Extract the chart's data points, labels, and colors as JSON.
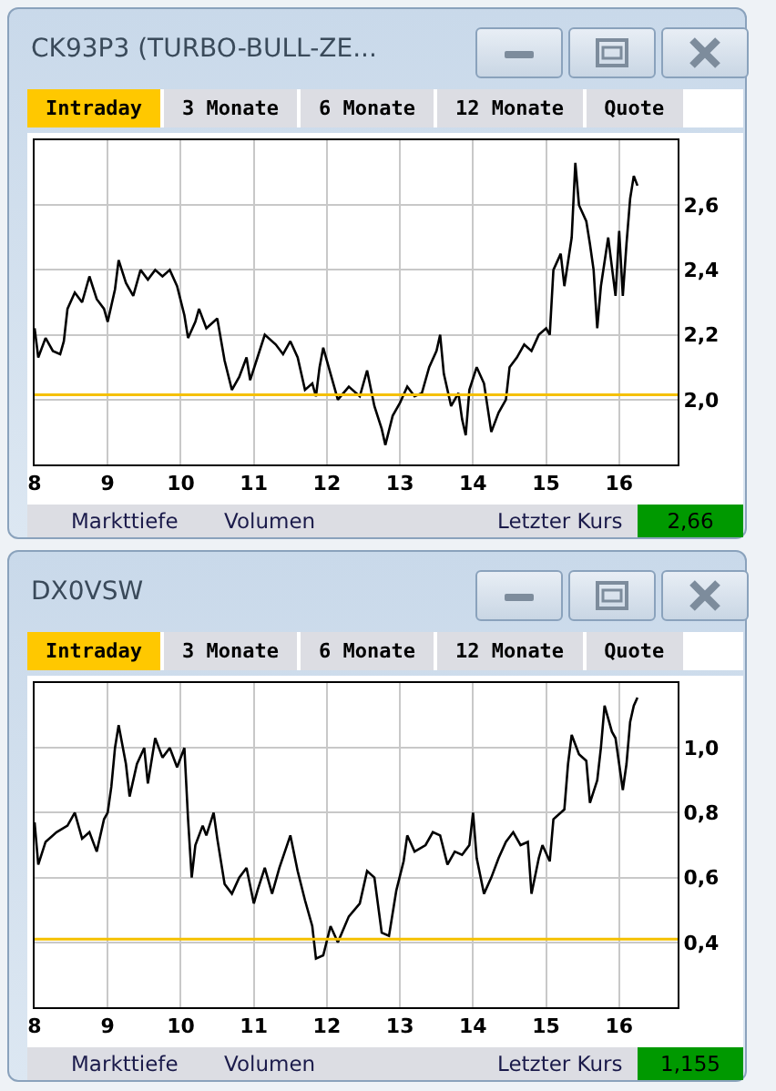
{
  "chart_data": [
    {
      "type": "line",
      "title": "CK93P3 (TURBO-BULL-ZE...",
      "annotations": [
        "Intraday",
        "3 Monate",
        "6 Monate",
        "12 Monate",
        "Quote",
        "Markttiefe",
        "Volumen",
        "Letzter Kurs",
        "2,66"
      ],
      "x": [
        8.0,
        8.05,
        8.15,
        8.25,
        8.35,
        8.4,
        8.45,
        8.55,
        8.65,
        8.7,
        8.75,
        8.85,
        8.95,
        9.0,
        9.1,
        9.15,
        9.25,
        9.35,
        9.45,
        9.55,
        9.65,
        9.75,
        9.85,
        9.95,
        10.05,
        10.1,
        10.2,
        10.25,
        10.35,
        10.5,
        10.6,
        10.7,
        10.8,
        10.9,
        10.95,
        11.05,
        11.15,
        11.3,
        11.4,
        11.5,
        11.6,
        11.7,
        11.8,
        11.85,
        11.9,
        11.95,
        12.05,
        12.15,
        12.3,
        12.45,
        12.55,
        12.65,
        12.75,
        12.8,
        12.9,
        13.0,
        13.1,
        13.2,
        13.3,
        13.4,
        13.5,
        13.55,
        13.6,
        13.7,
        13.8,
        13.85,
        13.9,
        13.95,
        14.05,
        14.15,
        14.25,
        14.35,
        14.45,
        14.5,
        14.6,
        14.7,
        14.8,
        14.9,
        15.0,
        15.05,
        15.1,
        15.2,
        15.25,
        15.35,
        15.4,
        15.45,
        15.55,
        15.6,
        15.65,
        15.7,
        15.75,
        15.85,
        15.95,
        16.0,
        16.05,
        16.1,
        16.15,
        16.2,
        16.25
      ],
      "series": [
        {
          "color": "#000000",
          "values": [
            2.22,
            2.13,
            2.19,
            2.15,
            2.14,
            2.18,
            2.28,
            2.33,
            2.3,
            2.34,
            2.38,
            2.31,
            2.28,
            2.24,
            2.34,
            2.43,
            2.36,
            2.32,
            2.4,
            2.37,
            2.4,
            2.38,
            2.4,
            2.35,
            2.26,
            2.19,
            2.24,
            2.28,
            2.22,
            2.25,
            2.12,
            2.03,
            2.07,
            2.13,
            2.06,
            2.13,
            2.2,
            2.17,
            2.14,
            2.18,
            2.13,
            2.03,
            2.05,
            2.01,
            2.1,
            2.16,
            2.08,
            2.0,
            2.04,
            2.01,
            2.09,
            1.98,
            1.91,
            1.86,
            1.95,
            1.99,
            2.04,
            2.01,
            2.02,
            2.1,
            2.15,
            2.2,
            2.08,
            1.98,
            2.02,
            1.94,
            1.89,
            2.03,
            2.1,
            2.05,
            1.9,
            1.96,
            2.0,
            2.1,
            2.13,
            2.17,
            2.15,
            2.2,
            2.22,
            2.2,
            2.4,
            2.45,
            2.35,
            2.5,
            2.73,
            2.6,
            2.55,
            2.48,
            2.4,
            2.22,
            2.35,
            2.5,
            2.32,
            2.52,
            2.32,
            2.48,
            2.62,
            2.69,
            2.66
          ]
        }
      ],
      "xlim": [
        8,
        16.8
      ],
      "xticks": [
        8,
        9,
        10,
        11,
        12,
        13,
        14,
        15,
        16
      ],
      "ylim": [
        1.8,
        2.8
      ],
      "yticks": [
        {
          "value": 2.0,
          "label": "2,0"
        },
        {
          "value": 2.2,
          "label": "2,2"
        },
        {
          "value": 2.4,
          "label": "2,4"
        },
        {
          "value": 2.6,
          "label": "2,6"
        }
      ],
      "ref_lines": [
        {
          "axis": "y",
          "value": 2.015,
          "color": "#f5c000"
        }
      ],
      "grid": true
    },
    {
      "type": "line",
      "title": "DX0VSW",
      "annotations": [
        "Intraday",
        "3 Monate",
        "6 Monate",
        "12 Monate",
        "Quote",
        "Markttiefe",
        "Volumen",
        "Letzter Kurs",
        "1,155"
      ],
      "x": [
        8.0,
        8.05,
        8.15,
        8.3,
        8.45,
        8.55,
        8.65,
        8.75,
        8.85,
        8.95,
        9.0,
        9.05,
        9.1,
        9.15,
        9.25,
        9.3,
        9.4,
        9.5,
        9.55,
        9.65,
        9.75,
        9.85,
        9.95,
        10.05,
        10.1,
        10.15,
        10.2,
        10.3,
        10.35,
        10.45,
        10.5,
        10.6,
        10.7,
        10.8,
        10.9,
        11.0,
        11.05,
        11.15,
        11.25,
        11.35,
        11.5,
        11.6,
        11.7,
        11.8,
        11.85,
        11.95,
        12.05,
        12.15,
        12.3,
        12.45,
        12.55,
        12.65,
        12.75,
        12.85,
        12.95,
        13.05,
        13.1,
        13.2,
        13.35,
        13.45,
        13.55,
        13.65,
        13.75,
        13.85,
        13.95,
        14.0,
        14.05,
        14.15,
        14.25,
        14.35,
        14.45,
        14.55,
        14.65,
        14.75,
        14.8,
        14.9,
        14.95,
        15.05,
        15.1,
        15.25,
        15.3,
        15.35,
        15.45,
        15.55,
        15.6,
        15.7,
        15.75,
        15.8,
        15.9,
        15.95,
        16.05,
        16.1,
        16.15,
        16.2,
        16.25
      ],
      "series": [
        {
          "color": "#000000",
          "values": [
            0.77,
            0.64,
            0.71,
            0.74,
            0.76,
            0.8,
            0.72,
            0.74,
            0.68,
            0.78,
            0.8,
            0.88,
            1.0,
            1.07,
            0.95,
            0.85,
            0.95,
            1.0,
            0.89,
            1.03,
            0.97,
            1.0,
            0.94,
            1.0,
            0.78,
            0.6,
            0.7,
            0.76,
            0.73,
            0.8,
            0.72,
            0.58,
            0.55,
            0.6,
            0.63,
            0.52,
            0.56,
            0.63,
            0.55,
            0.63,
            0.73,
            0.62,
            0.53,
            0.45,
            0.35,
            0.36,
            0.45,
            0.4,
            0.48,
            0.52,
            0.62,
            0.6,
            0.43,
            0.42,
            0.56,
            0.65,
            0.73,
            0.68,
            0.7,
            0.74,
            0.73,
            0.64,
            0.68,
            0.67,
            0.7,
            0.8,
            0.66,
            0.55,
            0.6,
            0.66,
            0.71,
            0.74,
            0.7,
            0.71,
            0.55,
            0.66,
            0.7,
            0.65,
            0.78,
            0.81,
            0.95,
            1.04,
            0.98,
            0.96,
            0.83,
            0.9,
            1.0,
            1.13,
            1.05,
            1.03,
            0.87,
            0.95,
            1.08,
            1.13,
            1.155
          ]
        }
      ],
      "xlim": [
        8,
        16.8
      ],
      "xticks": [
        8,
        9,
        10,
        11,
        12,
        13,
        14,
        15,
        16
      ],
      "ylim": [
        0.2,
        1.2
      ],
      "yticks": [
        {
          "value": 0.4,
          "label": "0,4"
        },
        {
          "value": 0.6,
          "label": "0,6"
        },
        {
          "value": 0.8,
          "label": "0,8"
        },
        {
          "value": 1.0,
          "label": "1,0"
        }
      ],
      "ref_lines": [
        {
          "axis": "y",
          "value": 0.41,
          "color": "#f5c000"
        }
      ],
      "grid": true
    }
  ]
}
